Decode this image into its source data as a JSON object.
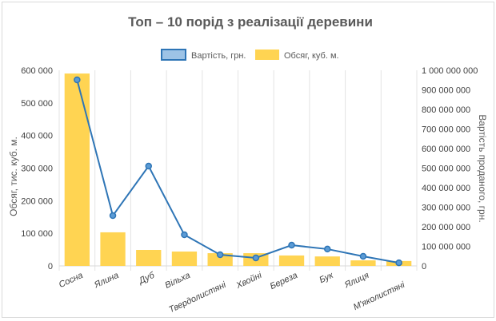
{
  "chart_data": {
    "type": "bar+line",
    "title": "Топ – 10 порід з реалізації деревини",
    "categories": [
      "Сосна",
      "Ялина",
      "Дуб",
      "Вільха",
      "Твердолистяні",
      "Хвойні",
      "Береза",
      "Бук",
      "Ялиця",
      "М'яколистяні"
    ],
    "series": [
      {
        "name": "Обсяг, куб. м.",
        "type": "bar",
        "axis": "left",
        "color": "#FFD452",
        "values": [
          590000,
          103000,
          49000,
          44000,
          39000,
          39000,
          32000,
          29000,
          17000,
          15000
        ]
      },
      {
        "name": "Вартість, грн.",
        "type": "line",
        "axis": "right",
        "color": "#2E75B6",
        "values": [
          951000000,
          257000000,
          510000000,
          159000000,
          57000000,
          41000000,
          106000000,
          86000000,
          49000000,
          16000000
        ]
      }
    ],
    "ylabel": "Обсяг, тис. куб. м.",
    "y2label": "Вартість проданого, грн.",
    "ylim": [
      0,
      600000
    ],
    "y2lim": [
      0,
      1000000000
    ],
    "yticks": [
      "0",
      "100 000",
      "200 000",
      "300 000",
      "400 000",
      "500 000",
      "600 000"
    ],
    "y2ticks": [
      "0",
      "100 000 000",
      "200 000 000",
      "300 000 000",
      "400 000 000",
      "500 000 000",
      "600 000 000",
      "700 000 000",
      "800 000 000",
      "900 000 000",
      "1 000 000 000"
    ],
    "legend_position": "top",
    "grid": "vertical"
  }
}
